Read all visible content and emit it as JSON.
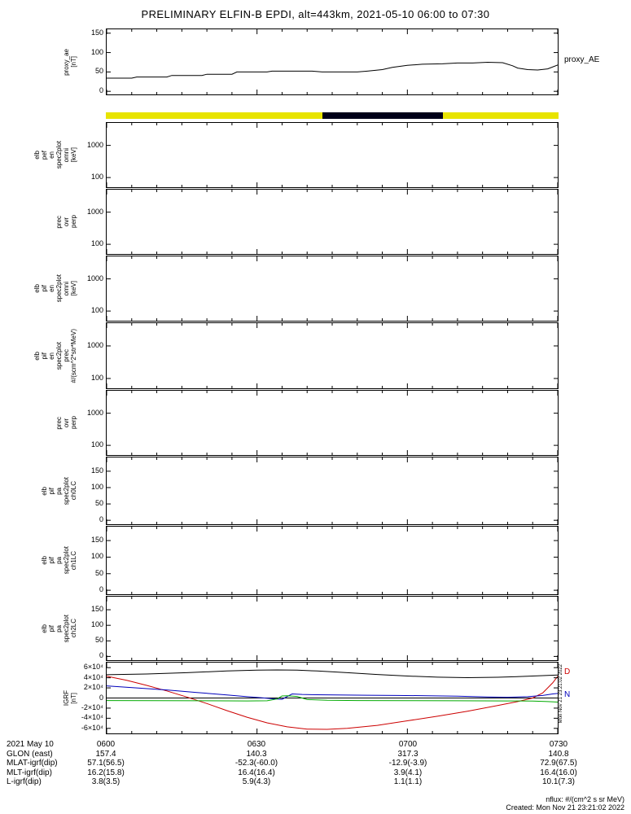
{
  "title": "PRELIMINARY ELFIN-B EPDI, alt=443km, 2021-05-10 06:00 to 07:30",
  "footer": {
    "nflux_note": "nflux: #/(cm^2 s sr MeV)",
    "created": "Created: Mon Nov 21 23:21:02 2022"
  },
  "time_axis": {
    "start": 360,
    "end": 450,
    "tick_values": [
      360,
      390,
      420,
      450
    ],
    "tick_labels": [
      "0600",
      "0630",
      "0700",
      "0730"
    ]
  },
  "coverage_bar": {
    "base_color": "#e8e400",
    "segments": [
      {
        "color": "#000018",
        "from": 403,
        "to": 427
      }
    ]
  },
  "bottom_table": {
    "rows": [
      {
        "label": "2021 May 10",
        "values": [
          "0600",
          "0630",
          "0700",
          "0730"
        ]
      },
      {
        "label": "GLON (east)",
        "values": [
          "157.4",
          "140.3",
          "317.3",
          "140.8"
        ]
      },
      {
        "label": "MLAT-igrf(dip)",
        "values": [
          "57.1(56.5)",
          "-52.3(-60.0)",
          "-12.9(-3.9)",
          "72.9(67.5)"
        ]
      },
      {
        "label": "MLT-igrf(dip)",
        "values": [
          "16.2(15.8)",
          "16.4(16.4)",
          "3.9(4.1)",
          "16.4(16.0)"
        ]
      },
      {
        "label": "L-igrf(dip)",
        "values": [
          "3.8(3.5)",
          "5.9(4.3)",
          "1.1(1.1)",
          "10.1(7.3)"
        ]
      }
    ]
  },
  "chart_data": [
    {
      "id": "proxy_ae",
      "type": "line",
      "ylabel_lines": [
        "proxy_ae",
        "[nT]"
      ],
      "yscale": "linear",
      "yrange": [
        -8,
        160
      ],
      "yticks": [
        {
          "v": 0,
          "label": "0"
        },
        {
          "v": 50,
          "label": "50"
        },
        {
          "v": 100,
          "label": "100"
        },
        {
          "v": 150,
          "label": "150"
        }
      ],
      "right_labels": [
        {
          "text": "proxy_AE",
          "color": "#000000",
          "v": 80
        }
      ],
      "series": [
        {
          "name": "proxy_AE",
          "color": "#000000",
          "x": [
            360,
            365,
            366,
            372,
            373,
            379,
            380,
            385,
            386,
            392,
            393,
            401,
            403,
            410,
            412,
            415,
            417,
            420,
            423,
            427,
            430,
            433,
            436,
            439,
            441,
            442,
            444,
            446,
            448,
            450
          ],
          "y": [
            34,
            34,
            37,
            37,
            41,
            41,
            44,
            44,
            50,
            50,
            52,
            52,
            50,
            50,
            52,
            56,
            62,
            67,
            70,
            71,
            73,
            73,
            75,
            74,
            66,
            60,
            56,
            55,
            58,
            68
          ]
        }
      ]
    },
    {
      "id": "elb_pef_en_spec2plot_omni",
      "type": "spectrogram",
      "ylabel_lines": [
        "elb",
        "pef",
        "en",
        "spec2plot",
        "omni",
        "[keV]"
      ],
      "yscale": "log",
      "yrange": [
        50,
        5000
      ],
      "yticks": [
        {
          "v": 100,
          "label": "100"
        },
        {
          "v": 1000,
          "label": "1000"
        }
      ],
      "series": []
    },
    {
      "id": "prec_ovr_perp_1",
      "type": "spectrogram",
      "ylabel_lines": [
        "prec",
        "ovr",
        "perp"
      ],
      "yscale": "log",
      "yrange": [
        50,
        5000
      ],
      "yticks": [
        {
          "v": 100,
          "label": "100"
        },
        {
          "v": 1000,
          "label": "1000"
        }
      ],
      "series": []
    },
    {
      "id": "elb_pif_en_spec2plot_omni",
      "type": "spectrogram",
      "ylabel_lines": [
        "elb",
        "pif",
        "en",
        "spec2plot",
        "omni",
        "[keV]"
      ],
      "yscale": "log",
      "yrange": [
        50,
        5000
      ],
      "yticks": [
        {
          "v": 100,
          "label": "100"
        },
        {
          "v": 1000,
          "label": "1000"
        }
      ],
      "series": []
    },
    {
      "id": "elb_pif_en_spec2plot_prec",
      "type": "spectrogram",
      "ylabel_lines": [
        "elb",
        "pif",
        "en",
        "spec2plot",
        "prec",
        "#/(scm^2*str*MeV)"
      ],
      "yscale": "log",
      "yrange": [
        50,
        5000
      ],
      "yticks": [
        {
          "v": 100,
          "label": "100"
        },
        {
          "v": 1000,
          "label": "1000"
        }
      ],
      "series": []
    },
    {
      "id": "prec_ovr_perp_2",
      "type": "spectrogram",
      "ylabel_lines": [
        "prec",
        "ovr",
        "perp"
      ],
      "yscale": "log",
      "yrange": [
        50,
        5000
      ],
      "yticks": [
        {
          "v": 100,
          "label": "100"
        },
        {
          "v": 1000,
          "label": "1000"
        }
      ],
      "series": []
    },
    {
      "id": "elb_pif_pa_spec2plot_ch0LC",
      "type": "spectrogram",
      "ylabel_lines": [
        "elb",
        "pif",
        "pa",
        "spec2plot",
        "ch0LC"
      ],
      "yscale": "linear",
      "yrange": [
        -12,
        192
      ],
      "yticks": [
        {
          "v": 0,
          "label": "0"
        },
        {
          "v": 50,
          "label": "50"
        },
        {
          "v": 100,
          "label": "100"
        },
        {
          "v": 150,
          "label": "150"
        }
      ],
      "series": []
    },
    {
      "id": "elb_pif_pa_spec2plot_ch1LC",
      "type": "spectrogram",
      "ylabel_lines": [
        "elb",
        "pif",
        "pa",
        "spec2plot",
        "ch1LC"
      ],
      "yscale": "linear",
      "yrange": [
        -12,
        192
      ],
      "yticks": [
        {
          "v": 0,
          "label": "0"
        },
        {
          "v": 50,
          "label": "50"
        },
        {
          "v": 100,
          "label": "100"
        },
        {
          "v": 150,
          "label": "150"
        }
      ],
      "series": []
    },
    {
      "id": "elb_pif_pa_spec2plot_ch2LC",
      "type": "spectrogram",
      "ylabel_lines": [
        "elb",
        "pif",
        "pa",
        "spec2plot",
        "ch2LC"
      ],
      "yscale": "linear",
      "yrange": [
        -12,
        192
      ],
      "yticks": [
        {
          "v": 0,
          "label": "0"
        },
        {
          "v": 50,
          "label": "50"
        },
        {
          "v": 100,
          "label": "100"
        },
        {
          "v": 150,
          "label": "150"
        }
      ],
      "series": []
    },
    {
      "id": "igrf",
      "type": "line",
      "ylabel_lines": [
        "IGRF",
        "[nT]"
      ],
      "yscale": "linear",
      "yrange": [
        -70000,
        70000
      ],
      "zero_line": true,
      "yticks": [
        {
          "v": 60000,
          "label": "6×10⁴"
        },
        {
          "v": 40000,
          "label": "4×10⁴"
        },
        {
          "v": 20000,
          "label": "2×10⁴"
        },
        {
          "v": 0,
          "label": "0"
        },
        {
          "v": -20000,
          "label": "-2×10⁴"
        },
        {
          "v": -40000,
          "label": "-4×10⁴"
        },
        {
          "v": -60000,
          "label": "-6×10⁴"
        }
      ],
      "right_labels": [
        {
          "text": "D",
          "color": "#cc0000",
          "v": 50000
        },
        {
          "text": "N",
          "color": "#0000bb",
          "v": 6000
        }
      ],
      "side_note": "Mon Nov 21 23:21:02 2022",
      "series": [
        {
          "name": "total",
          "color": "#000000",
          "x": [
            360,
            368,
            376,
            384,
            390,
            394,
            398,
            402,
            408,
            414,
            420,
            426,
            432,
            438,
            444,
            450
          ],
          "y": [
            46000,
            47500,
            50000,
            53500,
            55000,
            55500,
            55000,
            53500,
            50000,
            46500,
            43500,
            41200,
            40200,
            41000,
            43000,
            45500
          ]
        },
        {
          "name": "D",
          "color": "#cc0000",
          "x": [
            360,
            364,
            368,
            372,
            376,
            380,
            384,
            388,
            392,
            396,
            400,
            404,
            408,
            414,
            420,
            426,
            432,
            438,
            442,
            445,
            447,
            449,
            450
          ],
          "y": [
            43000,
            35000,
            25000,
            14000,
            2000,
            -11000,
            -25000,
            -38000,
            -49000,
            -57000,
            -61500,
            -62000,
            -60000,
            -54000,
            -45000,
            -36000,
            -26000,
            -15000,
            -7000,
            0,
            10000,
            30000,
            43000
          ]
        },
        {
          "name": "N",
          "color": "#0000bb",
          "x": [
            360,
            366,
            372,
            378,
            384,
            388,
            391,
            393,
            395,
            397,
            399,
            402,
            406,
            412,
            418,
            424,
            430,
            436,
            440,
            444,
            447,
            449,
            450
          ],
          "y": [
            24000,
            20000,
            16000,
            11000,
            6000,
            2500,
            500,
            -1500,
            -2500,
            8000,
            7000,
            6500,
            6000,
            5500,
            5000,
            4500,
            3500,
            2000,
            1500,
            2500,
            5000,
            8000,
            9000
          ]
        },
        {
          "name": "E",
          "color": "#00aa00",
          "x": [
            360,
            370,
            380,
            388,
            392,
            394,
            395,
            396,
            398,
            400,
            404,
            410,
            420,
            430,
            440,
            445,
            448,
            450
          ],
          "y": [
            -5000,
            -5200,
            -5500,
            -5800,
            -5500,
            -2000,
            4000,
            4500,
            3000,
            -3000,
            -4500,
            -5000,
            -5200,
            -5500,
            -5800,
            -6000,
            -7000,
            -8000
          ]
        }
      ]
    }
  ]
}
